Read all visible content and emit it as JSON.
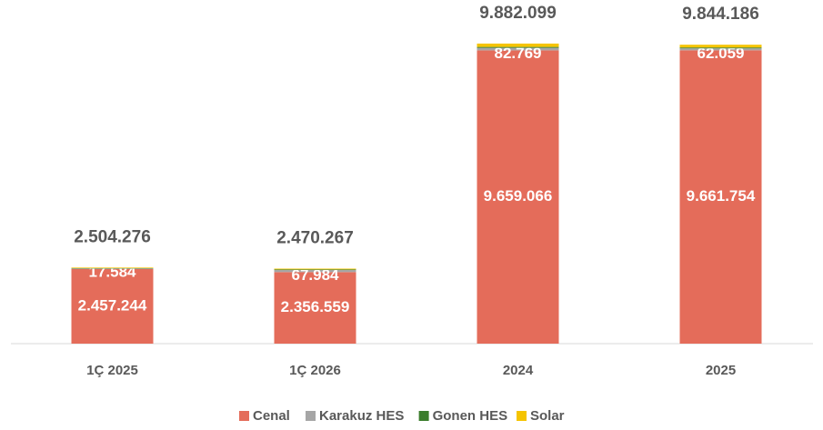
{
  "chart_data": {
    "type": "stacked_bar",
    "categories": [
      "1Ç 2025",
      "1Ç 2026",
      "2024",
      "2025"
    ],
    "series": [
      {
        "name": "Cenal",
        "color": "#e46c5a",
        "values": [
          2457244,
          2356559,
          9659066,
          9661754
        ],
        "value_labels": [
          "2.457.244",
          "2.356.559",
          "9.659.066",
          "9.661.754"
        ]
      },
      {
        "name": "Karakuz HES",
        "color": "#a6a6a6",
        "values": [
          17584,
          67984,
          82769,
          62059
        ],
        "value_labels": [
          "17.584",
          "67.984",
          "82.769",
          "62.059"
        ]
      },
      {
        "name": "Gonen HES",
        "color": "#3b7d2c",
        "values": [
          10000,
          20000,
          30000,
          30000
        ]
      },
      {
        "name": "Solar",
        "color": "#f5c400",
        "values": [
          19448,
          25724,
          110264,
          90373
        ]
      }
    ],
    "totals": [
      2504276,
      2470267,
      9882099,
      9844186
    ],
    "total_labels": [
      "2.504.276",
      "2.470.267",
      "9.882.099",
      "9.844.186"
    ],
    "ylim": [
      0,
      10000000
    ],
    "legend": "bottom"
  }
}
